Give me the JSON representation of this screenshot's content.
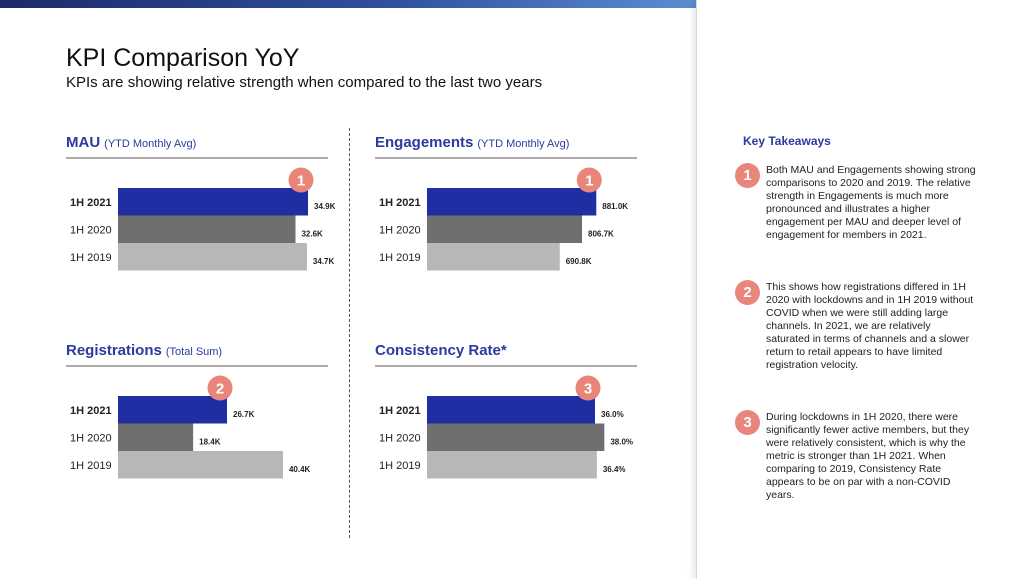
{
  "page": {
    "title": "KPI Comparison YoY",
    "subtitle": "KPIs are showing relative strength when compared to the last two years"
  },
  "colors": {
    "accent": "#2b3a9e",
    "bar_2021": "#1f2fa3",
    "bar_2020": "#6f6f6f",
    "bar_2019": "#b7b7b7",
    "badge": "#e8867c"
  },
  "chart_data": [
    {
      "type": "bar",
      "orientation": "horizontal",
      "title": "MAU",
      "subtitle": "(YTD Monthly Avg)",
      "categories": [
        "1H 2021",
        "1H 2020",
        "1H 2019"
      ],
      "values": [
        34.9,
        32.6,
        34.7
      ],
      "value_labels": [
        "34.9K",
        "32.6K",
        "34.7K"
      ],
      "unit": "K",
      "xlim": [
        0,
        36
      ],
      "badge": "1",
      "legend": "none"
    },
    {
      "type": "bar",
      "orientation": "horizontal",
      "title": "Engagements",
      "subtitle": "(YTD Monthly Avg)",
      "categories": [
        "1H 2021",
        "1H 2020",
        "1H 2019"
      ],
      "values": [
        881.0,
        806.7,
        690.8
      ],
      "value_labels": [
        "881.0K",
        "806.7K",
        "690.8K"
      ],
      "unit": "K",
      "xlim": [
        0,
        1020
      ],
      "badge": "1",
      "legend": "none"
    },
    {
      "type": "bar",
      "orientation": "horizontal",
      "title": "Registrations",
      "subtitle": "(Total Sum)",
      "categories": [
        "1H 2021",
        "1H 2020",
        "1H 2019"
      ],
      "values": [
        26.7,
        18.4,
        40.4
      ],
      "value_labels": [
        "26.7K",
        "18.4K",
        "40.4K"
      ],
      "unit": "K",
      "xlim": [
        0,
        48
      ],
      "badge": "2",
      "legend": "none"
    },
    {
      "type": "bar",
      "orientation": "horizontal",
      "title": "Consistency Rate*",
      "subtitle": "",
      "categories": [
        "1H 2021",
        "1H 2020",
        "1H 2019"
      ],
      "values": [
        36.0,
        38.0,
        36.4
      ],
      "value_labels": [
        "36.0%",
        "38.0%",
        "36.4%"
      ],
      "unit": "%",
      "xlim": [
        0,
        42
      ],
      "badge": "3",
      "legend": "none"
    }
  ],
  "takeaways": {
    "title": "Key Takeaways",
    "items": [
      {
        "num": "1",
        "text": "Both MAU and Engagements showing strong comparisons to 2020 and 2019. The relative strength in Engagements is much more pronounced and illustrates a higher engagement per MAU and deeper level of engagement for members in 2021."
      },
      {
        "num": "2",
        "text": "This shows how registrations differed in 1H 2020 with lockdowns and in 1H 2019 without COVID when we were still adding large channels. In 2021, we are relatively saturated in terms of channels and a slower return to retail appears to have limited registration velocity."
      },
      {
        "num": "3",
        "text": "During lockdowns in 1H 2020, there were significantly fewer active members, but they were relatively consistent, which is why the metric is stronger than 1H 2021. When comparing to 2019, Consistency Rate appears to be on par with a non-COVID years."
      }
    ]
  }
}
